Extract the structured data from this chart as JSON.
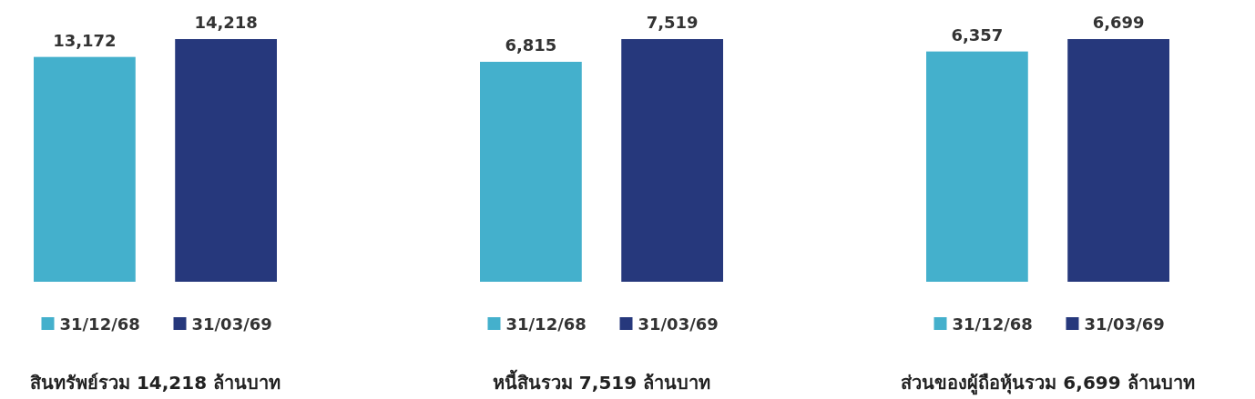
{
  "chart_data": [
    {
      "type": "bar",
      "title": "สินทรัพย์รวม 14,218 ล้านบาท",
      "categories": [
        null
      ],
      "series": [
        {
          "name": "31/12/68",
          "color": "#44b0cc",
          "values": [
            13172
          ],
          "value_labels": [
            "13,172"
          ]
        },
        {
          "name": "31/03/69",
          "color": "#26387c",
          "values": [
            14218
          ],
          "value_labels": [
            "14,218"
          ]
        }
      ],
      "legend": "bottom"
    },
    {
      "type": "bar",
      "title": "หนี้สินรวม 7,519 ล้านบาท",
      "categories": [
        null
      ],
      "series": [
        {
          "name": "31/12/68",
          "color": "#44b0cc",
          "values": [
            6815
          ],
          "value_labels": [
            "6,815"
          ]
        },
        {
          "name": "31/03/69",
          "color": "#26387c",
          "values": [
            7519
          ],
          "value_labels": [
            "7,519"
          ]
        }
      ],
      "legend": "bottom"
    },
    {
      "type": "bar",
      "title": "ส่วนของผู้ถือหุ้นรวม 6,699 ล้านบาท",
      "categories": [
        null
      ],
      "series": [
        {
          "name": "31/12/68",
          "color": "#44b0cc",
          "values": [
            6357
          ],
          "value_labels": [
            "6,357"
          ]
        },
        {
          "name": "31/03/69",
          "color": "#26387c",
          "values": [
            6699
          ],
          "value_labels": [
            "6,699"
          ]
        }
      ],
      "legend": "bottom"
    }
  ]
}
